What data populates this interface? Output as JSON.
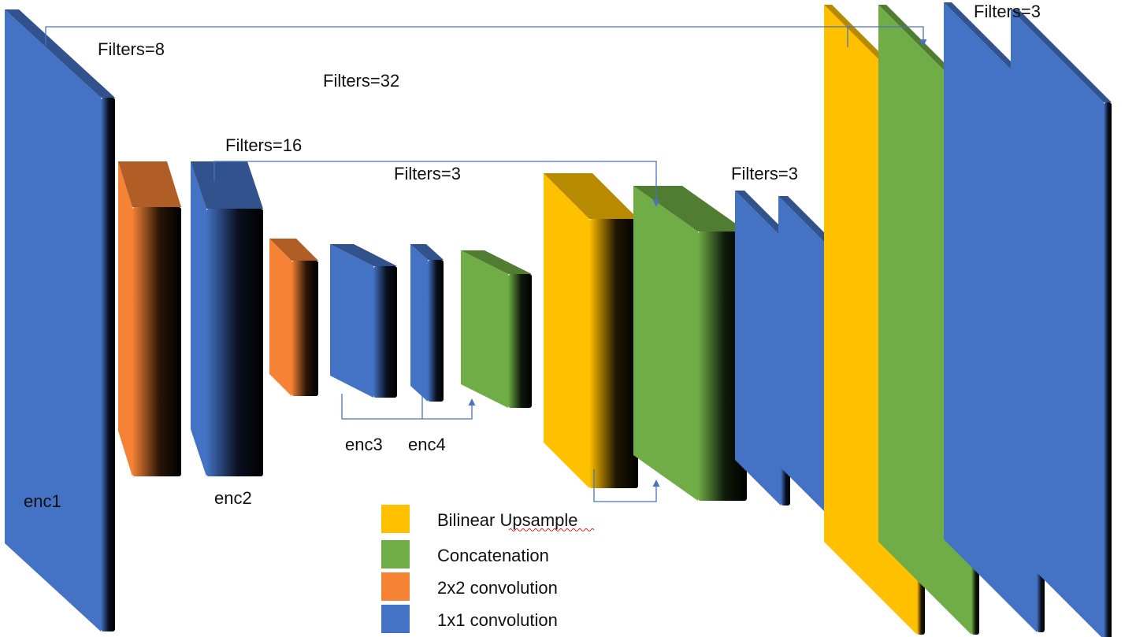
{
  "colors": {
    "upsample": "#FFC000",
    "concat": "#70AD47",
    "conv2x2": "#F58235",
    "conv1x1": "#4472C4",
    "connector": "#4A72C0"
  },
  "labels": {
    "filters_8": "Filters=8",
    "filters_32": "Filters=32",
    "filters_16": "Filters=16",
    "filters_3_mid": "Filters=3",
    "filters_3_right": "Filters=3",
    "filters_3_top": "Filters=3",
    "enc1": "enc1",
    "enc2": "enc2",
    "enc3": "enc3",
    "enc4": "enc4"
  },
  "legend": [
    {
      "label": "Bilinear Upsample",
      "color": "#FFC000"
    },
    {
      "label": "Concatenation",
      "color": "#70AD47"
    },
    {
      "label": "2x2 convolution",
      "color": "#F58235"
    },
    {
      "label": "1x1 convolution",
      "color": "#4472C4"
    }
  ],
  "blocks": [
    {
      "name": "enc1-block",
      "type": "conv1x1"
    },
    {
      "name": "conv2x2-block-1",
      "type": "conv2x2"
    },
    {
      "name": "enc2-block",
      "type": "conv1x1"
    },
    {
      "name": "conv2x2-block-2",
      "type": "conv2x2"
    },
    {
      "name": "enc3-block",
      "type": "conv1x1"
    },
    {
      "name": "enc4-block",
      "type": "conv1x1"
    },
    {
      "name": "concat-block-1",
      "type": "concat"
    },
    {
      "name": "upsample-block-1",
      "type": "upsample"
    },
    {
      "name": "concat-block-2",
      "type": "concat"
    },
    {
      "name": "conv1x1-block-mid-1",
      "type": "conv1x1"
    },
    {
      "name": "conv1x1-block-mid-2",
      "type": "conv1x1"
    },
    {
      "name": "upsample-block-2",
      "type": "upsample"
    },
    {
      "name": "concat-block-3",
      "type": "concat"
    },
    {
      "name": "conv1x1-block-out-1",
      "type": "conv1x1"
    },
    {
      "name": "conv1x1-block-out-2",
      "type": "conv1x1"
    }
  ]
}
